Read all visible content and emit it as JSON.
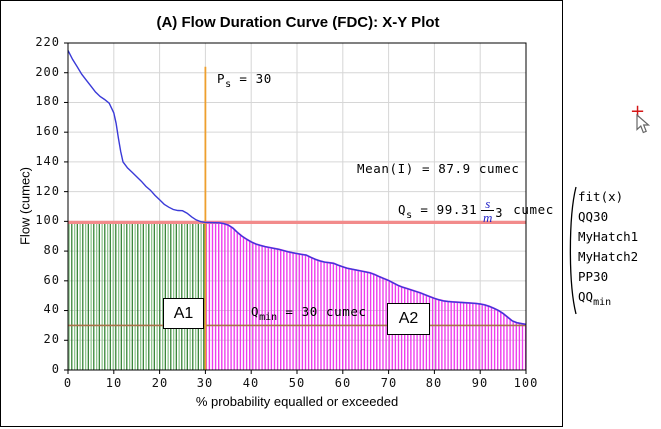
{
  "chart_data": {
    "type": "line",
    "title": "(A) Flow Duration Curve (FDC): X-Y Plot",
    "xlabel": "% probability equalled or exceeded",
    "ylabel": "Flow (cumec)",
    "xlim": [
      0,
      100
    ],
    "ylim": [
      0,
      220
    ],
    "x_ticks": [
      0,
      10,
      20,
      30,
      40,
      50,
      60,
      70,
      80,
      90,
      100
    ],
    "y_ticks": [
      0,
      20,
      40,
      60,
      80,
      100,
      120,
      140,
      160,
      180,
      200,
      220
    ],
    "grid": true,
    "grid_color": "#d6d6d6",
    "series": [
      {
        "name": "fit(x)",
        "color": "#3a3ad8",
        "x": [
          0,
          1,
          2,
          3,
          4,
          5,
          6,
          7,
          8,
          9,
          10,
          10.5,
          11,
          11.5,
          12,
          13,
          14,
          15,
          16,
          17,
          18,
          19,
          20,
          21,
          22,
          23,
          24,
          25,
          26,
          27,
          28,
          29,
          30,
          31,
          32,
          33,
          34,
          35,
          36,
          37,
          38,
          39,
          40,
          41,
          42,
          43,
          44,
          45,
          46,
          47,
          48,
          49,
          50,
          51,
          52,
          53,
          54,
          55,
          56,
          57,
          58,
          59,
          60,
          61,
          62,
          63,
          64,
          65,
          66,
          67,
          68,
          69,
          70,
          71,
          72,
          73,
          74,
          75,
          76,
          77,
          78,
          79,
          80,
          81,
          82,
          83,
          84,
          85,
          86,
          87,
          88,
          89,
          90,
          91,
          92,
          93,
          94,
          95,
          96,
          97,
          98,
          99,
          100
        ],
        "y": [
          215,
          209,
          204,
          199,
          195,
          191,
          187,
          184,
          182,
          179.5,
          173,
          166,
          156,
          147,
          140,
          136,
          133,
          130,
          127,
          123.5,
          121,
          117.5,
          114.5,
          111.5,
          109.5,
          108,
          107.3,
          107.2,
          105.5,
          103,
          101,
          99.8,
          99.3,
          99.2,
          99.1,
          99,
          98.5,
          97.5,
          95.5,
          92.5,
          90,
          88,
          86.2,
          84.8,
          83.8,
          83,
          82.4,
          81.8,
          81.2,
          80.4,
          79.6,
          78.9,
          78.3,
          77.8,
          77.3,
          75.8,
          74.5,
          73.4,
          72.6,
          72.2,
          71.8,
          70.5,
          69.4,
          68.4,
          67.8,
          67.2,
          66.6,
          66,
          65.3,
          64.2,
          62.8,
          61.5,
          60.2,
          58.6,
          57,
          55.8,
          54.8,
          53.8,
          52.8,
          51.8,
          50.6,
          49.4,
          48.2,
          47.2,
          46.5,
          46.1,
          45.8,
          45.6,
          45.4,
          45.2,
          45,
          44.8,
          44.4,
          43.8,
          42.8,
          41.5,
          40,
          38,
          35.5,
          33,
          31.8,
          31.2,
          30.7
        ]
      }
    ],
    "regions": [
      {
        "label": "A1",
        "x_range": [
          0,
          30
        ],
        "top": 99.31,
        "hatch_color": "#2f8f2f",
        "hatch_color_light": "#8fc68f",
        "style": "vertical-hatch"
      },
      {
        "label": "A2",
        "x_range": [
          30,
          100
        ],
        "top": "curve",
        "hatch_color": "#ee3cee",
        "style": "vertical-hatch"
      }
    ],
    "ref_lines": [
      {
        "name": "PP30",
        "orientation": "vertical",
        "x": 30,
        "y_span": [
          0,
          204
        ],
        "color": "#ee9f2e"
      },
      {
        "name": "QQ30",
        "orientation": "horizontal",
        "y": 99.31,
        "color": "#f28b8b"
      },
      {
        "name": "QQmin",
        "orientation": "horizontal",
        "y": 30,
        "color": "#a8734a"
      }
    ],
    "annotations": {
      "ps": {
        "symbol": "P",
        "sub": "s",
        "value": "= 30"
      },
      "mean": {
        "text": "Mean(I) = 87.9 cumec"
      },
      "qs": {
        "symbol": "Q",
        "sub": "s",
        "value": "= 99.31",
        "unit_num": "s",
        "unit_den": "m",
        "unit_exp": "3",
        "unit_suffix": "cumec"
      },
      "qmin": {
        "symbol": "Q",
        "sub": "min",
        "value": "= 30 cumec"
      }
    }
  },
  "side_panel": {
    "trace_list": {
      "items": [
        {
          "label": "fit(x)"
        },
        {
          "label": "QQ30"
        },
        {
          "label": "MyHatch1"
        },
        {
          "label": "MyHatch2"
        },
        {
          "label": "PP30"
        },
        {
          "label": "QQ",
          "sub": "min"
        }
      ]
    },
    "cursor": {
      "crosshair": "+"
    }
  }
}
